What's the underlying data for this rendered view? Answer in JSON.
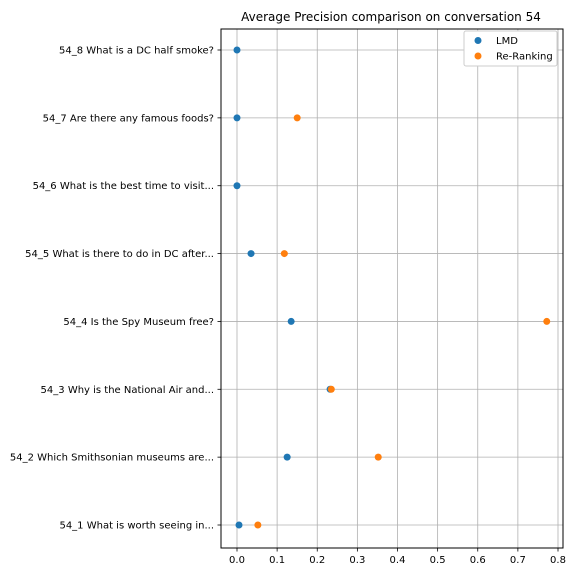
{
  "chart_data": {
    "type": "scatter",
    "title": "Average Precision comparison on conversation 54",
    "xlabel": "",
    "ylabel": "",
    "xlim": [
      -0.04,
      0.81
    ],
    "xticks": [
      0.0,
      0.1,
      0.2,
      0.3,
      0.4,
      0.5,
      0.6,
      0.7,
      0.8
    ],
    "xtick_labels": [
      "0.0",
      "0.1",
      "0.2",
      "0.3",
      "0.4",
      "0.5",
      "0.6",
      "0.7",
      "0.8"
    ],
    "categories": [
      "54_1 What is worth seeing in...",
      "54_2 Which Smithsonian museums are...",
      "54_3 Why is the National Air and...",
      "54_4 Is the Spy Museum free?",
      "54_5 What is there to do in DC after...",
      "54_6 What is the best time to visit...",
      "54_7 Are there any famous foods?",
      "54_8 What is a DC half smoke?"
    ],
    "series": [
      {
        "name": "LMD",
        "color": "#1f77b4",
        "values": [
          0.005,
          0.125,
          0.232,
          0.135,
          0.035,
          0.0,
          0.0,
          0.0
        ]
      },
      {
        "name": "Re-Ranking",
        "color": "#ff7f0e",
        "values": [
          0.052,
          0.352,
          0.235,
          0.772,
          0.118,
          null,
          0.15,
          null
        ]
      }
    ],
    "grid": true,
    "legend_position": "top-right"
  }
}
